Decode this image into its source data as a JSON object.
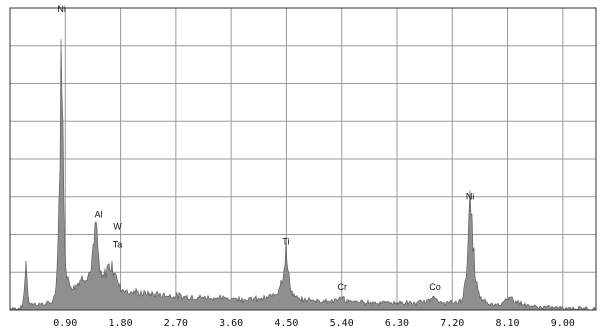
{
  "colors": {
    "fill": "#8f8f8f",
    "outline": "#555555",
    "grid": "#9a9a9a",
    "frame": "#333333",
    "background": "#ffffff"
  },
  "chart_data": {
    "type": "area",
    "title": "",
    "xlabel": "",
    "ylabel": "",
    "xlim": [
      0,
      9.54
    ],
    "ylim": [
      0,
      100
    ],
    "grid": true,
    "legend": "none",
    "x_ticks": [
      "0.90",
      "1.80",
      "2.70",
      "3.60",
      "4.50",
      "5.40",
      "6.30",
      "7.20",
      "8.10",
      "9.00"
    ],
    "x_tick_values": [
      0.9,
      1.8,
      2.7,
      3.6,
      4.5,
      5.4,
      6.3,
      7.2,
      8.1,
      9.0
    ],
    "series": [
      {
        "x": [
          0.1,
          0.2,
          0.24,
          0.26,
          0.28,
          0.3,
          0.33,
          0.4,
          0.5,
          0.6,
          0.7,
          0.75,
          0.78,
          0.8,
          0.82,
          0.84,
          0.86,
          0.88,
          0.9,
          0.93,
          0.96,
          1.0,
          1.05,
          1.1,
          1.2,
          1.3,
          1.36,
          1.4,
          1.44,
          1.47,
          1.5,
          1.55,
          1.6,
          1.66,
          1.72,
          1.75,
          1.78,
          1.82,
          1.86,
          1.92,
          2.0,
          2.2,
          2.5,
          2.8,
          3.1,
          3.4,
          3.7,
          4.0,
          4.2,
          4.35,
          4.45,
          4.49,
          4.53,
          4.6,
          4.7,
          4.8,
          4.9,
          5.0,
          5.2,
          5.36,
          5.41,
          5.46,
          5.6,
          5.8,
          6.0,
          6.3,
          6.6,
          6.8,
          6.88,
          6.92,
          6.96,
          7.05,
          7.2,
          7.35,
          7.42,
          7.46,
          7.49,
          7.53,
          7.58,
          7.65,
          7.8,
          8.0,
          8.15,
          8.25,
          8.4,
          8.6,
          9.0,
          9.54
        ],
        "y": [
          0.5,
          1,
          8,
          18,
          10,
          3,
          2,
          2,
          2,
          2,
          3,
          8,
          22,
          38,
          60,
          97,
          62,
          30,
          18,
          12,
          9,
          8,
          8,
          9,
          11,
          12,
          20,
          29,
          17,
          12,
          10,
          12,
          15,
          14,
          13,
          9,
          8,
          7,
          7,
          6,
          6,
          5.5,
          5,
          4.5,
          4.2,
          4,
          3.8,
          3.6,
          4,
          6,
          12,
          20,
          12,
          5,
          3.5,
          3.3,
          3.5,
          3.2,
          3,
          3.2,
          5,
          3,
          2.8,
          2.6,
          2.5,
          2.4,
          2.3,
          3,
          5,
          4,
          2.5,
          2.4,
          2.4,
          3,
          10,
          25,
          35,
          25,
          10,
          4,
          2,
          2.2,
          4,
          3,
          1.5,
          1,
          0.8,
          0.5
        ]
      }
    ],
    "annotations": [
      {
        "label": "Ni",
        "x": 0.84,
        "y": 97
      },
      {
        "label": "Al",
        "x": 1.44,
        "y": 29
      },
      {
        "label": "W",
        "x": 1.75,
        "y": 25
      },
      {
        "label": "Ta",
        "x": 1.75,
        "y": 19
      },
      {
        "label": "Ti",
        "x": 4.49,
        "y": 20
      },
      {
        "label": "Cr",
        "x": 5.41,
        "y": 5
      },
      {
        "label": "Co",
        "x": 6.92,
        "y": 5
      },
      {
        "label": "Ni",
        "x": 7.49,
        "y": 35
      }
    ]
  }
}
